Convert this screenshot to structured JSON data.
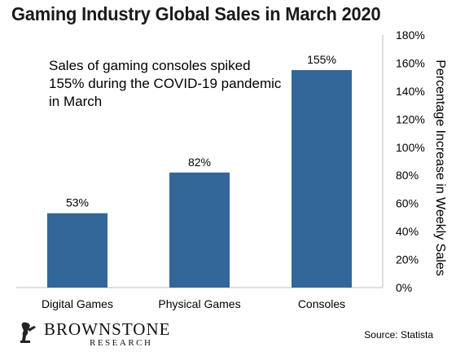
{
  "chart_data": {
    "type": "bar",
    "title": "Gaming Industry Global Sales in March 2020",
    "categories": [
      "Digital Games",
      "Physical Games",
      "Consoles"
    ],
    "values": [
      53,
      82,
      155
    ],
    "value_labels": [
      "53%",
      "82%",
      "155%"
    ],
    "ylabel": "Percentage Increase in Weekly Sales",
    "ylim": [
      0,
      180
    ],
    "yticks": [
      "0%",
      "20%",
      "40%",
      "60%",
      "80%",
      "100%",
      "120%",
      "140%",
      "160%",
      "180%"
    ],
    "y_axis_side": "right",
    "grid": false,
    "legend": "none",
    "bar_color": "#336699",
    "annotation": "Sales of gaming consoles spiked 155% during the COVID-19 pandemic in March"
  },
  "logo": {
    "name": "BROWNSTONE",
    "sub": "RESEARCH"
  },
  "source": "Source: Statista"
}
